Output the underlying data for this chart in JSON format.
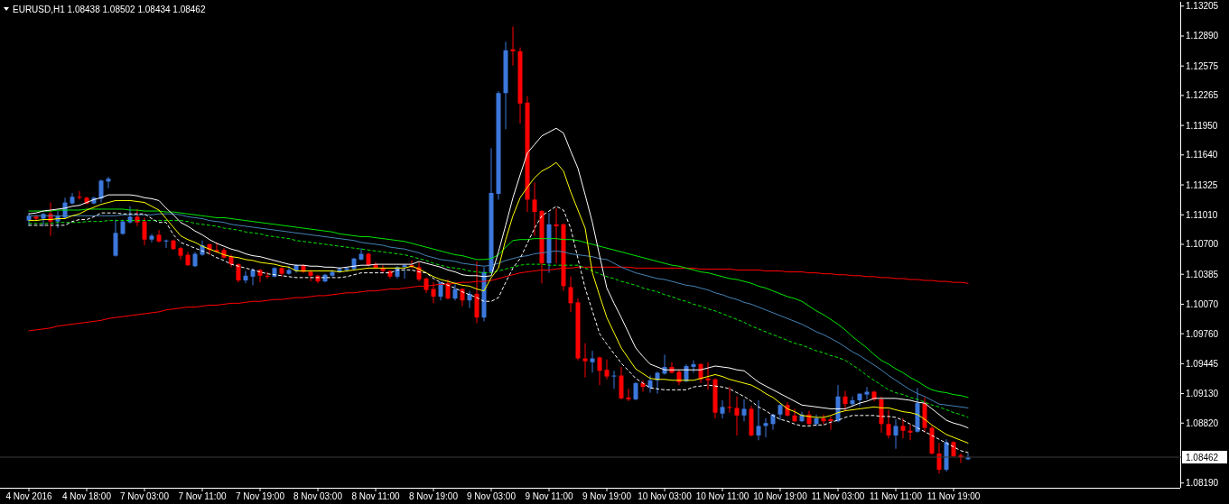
{
  "chart_data": {
    "type": "candlestick",
    "title": "EURUSD,H1 1.08438 1.08502 1.08434 1.08462",
    "categories": [
      "4 Nov 2016",
      null,
      null,
      null,
      null,
      null,
      null,
      null,
      "4 Nov 18:00",
      null,
      null,
      null,
      null,
      null,
      null,
      null,
      "7 Nov 03:00",
      null,
      null,
      null,
      null,
      null,
      null,
      null,
      "7 Nov 11:00",
      null,
      null,
      null,
      null,
      null,
      null,
      null,
      "7 Nov 19:00",
      null,
      null,
      null,
      null,
      null,
      null,
      null,
      "8 Nov 03:00",
      null,
      null,
      null,
      null,
      null,
      null,
      null,
      "8 Nov 11:00",
      null,
      null,
      null,
      null,
      null,
      null,
      null,
      "8 Nov 19:00",
      null,
      null,
      null,
      null,
      null,
      null,
      null,
      "9 Nov 03:00",
      null,
      null,
      null,
      null,
      null,
      null,
      null,
      "9 Nov 11:00",
      null,
      null,
      null,
      null,
      null,
      null,
      null,
      "9 Nov 19:00",
      null,
      null,
      null,
      null,
      null,
      null,
      null,
      "10 Nov 03:00",
      null,
      null,
      null,
      null,
      null,
      null,
      null,
      "10 Nov 11:00",
      null,
      null,
      null,
      null,
      null,
      null,
      null,
      "10 Nov 19:00",
      null,
      null,
      null,
      null,
      null,
      null,
      null,
      "11 Nov 03:00",
      null,
      null,
      null,
      null,
      null,
      null,
      null,
      "11 Nov 11:00",
      null,
      null,
      null,
      null,
      null,
      null,
      null,
      "11 Nov 19:00",
      null,
      null
    ],
    "ohlc": [
      [
        1.1095,
        1.1103,
        1.1089,
        1.11
      ],
      [
        1.1099,
        1.1101,
        1.1095,
        1.1097
      ],
      [
        1.1097,
        1.1103,
        1.1089,
        1.1102
      ],
      [
        1.1102,
        1.1114,
        1.1079,
        1.1094
      ],
      [
        1.1094,
        1.1105,
        1.1087,
        1.11
      ],
      [
        1.1098,
        1.1119,
        1.1097,
        1.1114
      ],
      [
        1.1113,
        1.1124,
        1.1112,
        1.112
      ],
      [
        1.112,
        1.1126,
        1.1117,
        1.1119
      ],
      [
        1.1119,
        1.112,
        1.1112,
        1.1113
      ],
      [
        1.1113,
        1.112,
        1.1112,
        1.1119
      ],
      [
        1.1118,
        1.1138,
        1.1114,
        1.1137
      ],
      [
        1.1136,
        1.1141,
        1.1129,
        1.1139
      ],
      [
        1.1058,
        1.1096,
        1.1057,
        1.1082
      ],
      [
        1.1081,
        1.1096,
        1.108,
        1.1094
      ],
      [
        1.1093,
        1.111,
        1.1092,
        1.1099
      ],
      [
        1.1099,
        1.1107,
        1.1089,
        1.1093
      ],
      [
        1.1094,
        1.1098,
        1.1069,
        1.1075
      ],
      [
        1.1075,
        1.1081,
        1.1072,
        1.1079
      ],
      [
        1.108,
        1.1085,
        1.1072,
        1.1073
      ],
      [
        1.1073,
        1.1075,
        1.1066,
        1.1074
      ],
      [
        1.1074,
        1.1075,
        1.1064,
        1.1065
      ],
      [
        1.1066,
        1.1067,
        1.1054,
        1.1058
      ],
      [
        1.1059,
        1.1062,
        1.1047,
        1.1048
      ],
      [
        1.1047,
        1.1062,
        1.1046,
        1.106
      ],
      [
        1.1059,
        1.1074,
        1.1058,
        1.1069
      ],
      [
        1.107,
        1.1071,
        1.1059,
        1.1064
      ],
      [
        1.1064,
        1.1072,
        1.1061,
        1.1062
      ],
      [
        1.1064,
        1.1066,
        1.1055,
        1.1056
      ],
      [
        1.1057,
        1.1059,
        1.1046,
        1.1049
      ],
      [
        1.1049,
        1.105,
        1.103,
        1.1032
      ],
      [
        1.1032,
        1.1042,
        1.1029,
        1.1037
      ],
      [
        1.1036,
        1.1045,
        1.1027,
        1.1043
      ],
      [
        1.1043,
        1.1044,
        1.103,
        1.1037
      ],
      [
        1.1037,
        1.1041,
        1.1034,
        1.1036
      ],
      [
        1.1036,
        1.1046,
        1.1035,
        1.1045
      ],
      [
        1.1045,
        1.1046,
        1.1036,
        1.1039
      ],
      [
        1.1039,
        1.1047,
        1.1038,
        1.1043
      ],
      [
        1.1042,
        1.1049,
        1.104,
        1.1048
      ],
      [
        1.1048,
        1.1049,
        1.104,
        1.1041
      ],
      [
        1.1041,
        1.1043,
        1.1031,
        1.1037
      ],
      [
        1.1037,
        1.1038,
        1.1029,
        1.1031
      ],
      [
        1.1031,
        1.1039,
        1.103,
        1.1038
      ],
      [
        1.1037,
        1.1043,
        1.1036,
        1.1041
      ],
      [
        1.1041,
        1.1046,
        1.104,
        1.1044
      ],
      [
        1.1043,
        1.1046,
        1.1041,
        1.1045
      ],
      [
        1.1044,
        1.1056,
        1.1043,
        1.1055
      ],
      [
        1.1054,
        1.1066,
        1.1053,
        1.106
      ],
      [
        1.106,
        1.1061,
        1.1047,
        1.1048
      ],
      [
        1.1049,
        1.1051,
        1.1044,
        1.1045
      ],
      [
        1.1045,
        1.1048,
        1.104,
        1.1042
      ],
      [
        1.1042,
        1.1043,
        1.1034,
        1.1036
      ],
      [
        1.1036,
        1.1047,
        1.1034,
        1.1046
      ],
      [
        1.1046,
        1.1049,
        1.1034,
        1.1048
      ],
      [
        1.1048,
        1.1053,
        1.1045,
        1.1046
      ],
      [
        1.1046,
        1.1051,
        1.1031,
        1.1033
      ],
      [
        1.1034,
        1.1035,
        1.1019,
        1.1022
      ],
      [
        1.1023,
        1.103,
        1.1008,
        1.1015
      ],
      [
        1.1015,
        1.1031,
        1.1011,
        1.103
      ],
      [
        1.1029,
        1.1033,
        1.1012,
        1.1013
      ],
      [
        1.1013,
        1.1028,
        1.1011,
        1.1023
      ],
      [
        1.1023,
        1.1024,
        1.1005,
        1.1011
      ],
      [
        1.1011,
        1.1021,
        1.1003,
        1.1018
      ],
      [
        1.1018,
        1.1052,
        1.0987,
        1.0993
      ],
      [
        1.0993,
        1.1046,
        1.0989,
        1.1041
      ],
      [
        1.1041,
        1.1171,
        1.104,
        1.1124
      ],
      [
        1.1123,
        1.1231,
        1.1117,
        1.1229
      ],
      [
        1.1229,
        1.1283,
        1.1191,
        1.1274
      ],
      [
        1.1275,
        1.1299,
        1.1258,
        1.1273
      ],
      [
        1.1273,
        1.1277,
        1.1197,
        1.1218
      ],
      [
        1.1219,
        1.1226,
        1.1104,
        1.1117
      ],
      [
        1.1117,
        1.1135,
        1.1079,
        1.1104
      ],
      [
        1.1105,
        1.1106,
        1.1029,
        1.105
      ],
      [
        1.105,
        1.1103,
        1.104,
        1.1091
      ],
      [
        1.1091,
        1.1108,
        1.105,
        1.1089
      ],
      [
        1.1091,
        1.1092,
        1.1021,
        1.1026
      ],
      [
        1.1025,
        1.1036,
        1.0999,
        1.1008
      ],
      [
        1.1009,
        1.1013,
        1.0948,
        1.095
      ],
      [
        1.095,
        1.0966,
        1.093,
        1.0947
      ],
      [
        1.0946,
        1.0958,
        1.0935,
        1.095
      ],
      [
        1.0951,
        1.0952,
        1.0922,
        1.0937
      ],
      [
        1.0938,
        1.0949,
        1.0928,
        1.0931
      ],
      [
        1.0931,
        1.0937,
        1.0918,
        1.0932
      ],
      [
        1.0932,
        1.0941,
        1.0907,
        1.0908
      ],
      [
        1.0909,
        1.0918,
        1.0905,
        1.0907
      ],
      [
        1.0907,
        1.0925,
        1.0906,
        1.0924
      ],
      [
        1.0924,
        1.0927,
        1.0915,
        1.092
      ],
      [
        1.0919,
        1.0932,
        1.0914,
        1.0927
      ],
      [
        1.0927,
        1.0936,
        1.0913,
        1.0935
      ],
      [
        1.0934,
        1.0954,
        1.0933,
        1.0941
      ],
      [
        1.0941,
        1.0946,
        1.0934,
        1.0935
      ],
      [
        1.0936,
        1.0938,
        1.0922,
        1.0925
      ],
      [
        1.0926,
        1.0944,
        1.0925,
        1.0942
      ],
      [
        1.0941,
        1.0948,
        1.0935,
        1.0944
      ],
      [
        1.0944,
        1.0945,
        1.0924,
        1.0928
      ],
      [
        1.0929,
        1.0946,
        1.0917,
        1.0927
      ],
      [
        1.0928,
        1.0929,
        1.0887,
        1.0893
      ],
      [
        1.0892,
        1.0906,
        1.0887,
        1.0899
      ],
      [
        1.0899,
        1.092,
        1.0893,
        1.0898
      ],
      [
        1.0898,
        1.091,
        1.0869,
        1.089
      ],
      [
        1.089,
        1.0907,
        1.0884,
        1.0897
      ],
      [
        1.0897,
        1.09,
        1.0868,
        1.0869
      ],
      [
        1.0869,
        1.0906,
        1.0864,
        1.0879
      ],
      [
        1.0879,
        1.0887,
        1.0867,
        1.0882
      ],
      [
        1.0881,
        1.0892,
        1.0875,
        1.0891
      ],
      [
        1.0891,
        1.0902,
        1.0885,
        1.0901
      ],
      [
        1.0901,
        1.0904,
        1.0889,
        1.089
      ],
      [
        1.089,
        1.0897,
        1.0883,
        1.0884
      ],
      [
        1.0884,
        1.0894,
        1.0883,
        1.0891
      ],
      [
        1.0891,
        1.0895,
        1.088,
        1.0881
      ],
      [
        1.0881,
        1.0891,
        1.0879,
        1.0887
      ],
      [
        1.0887,
        1.0891,
        1.0881,
        1.0884
      ],
      [
        1.0886,
        1.0889,
        1.0875,
        1.0884
      ],
      [
        1.0884,
        1.0922,
        1.0883,
        1.091
      ],
      [
        1.091,
        1.0916,
        1.0895,
        1.0902
      ],
      [
        1.0902,
        1.091,
        1.09,
        1.0906
      ],
      [
        1.0906,
        1.0913,
        1.09,
        1.0913
      ],
      [
        1.0912,
        1.092,
        1.0907,
        1.0915
      ],
      [
        1.0915,
        1.0916,
        1.0905,
        1.0907
      ],
      [
        1.0907,
        1.091,
        1.0872,
        1.0881
      ],
      [
        1.0881,
        1.0896,
        1.0866,
        1.0869
      ],
      [
        1.0869,
        1.0886,
        1.0855,
        1.0879
      ],
      [
        1.0879,
        1.0887,
        1.0866,
        1.0874
      ],
      [
        1.0874,
        1.088,
        1.0864,
        1.0872
      ],
      [
        1.0873,
        1.0919,
        1.0872,
        1.0903
      ],
      [
        1.0903,
        1.0909,
        1.0872,
        1.0877
      ],
      [
        1.0877,
        1.0879,
        1.0849,
        1.085
      ],
      [
        1.085,
        1.0861,
        1.0829,
        1.0833
      ],
      [
        1.0833,
        1.0865,
        1.0831,
        1.0862
      ],
      [
        1.0862,
        1.0863,
        1.0847,
        1.0847
      ],
      [
        1.0848,
        1.085,
        1.084,
        1.0846
      ],
      [
        1.0844,
        1.085,
        1.0843,
        1.0846
      ]
    ],
    "colors": [
      "#3c78dc",
      "#ff0000",
      "#3c78dc",
      "#ff0000",
      "#3c78dc",
      "#3c78dc",
      "#3c78dc",
      "#ff0000",
      "#ff0000",
      "#3c78dc",
      "#3c78dc",
      "#3c78dc",
      "#3c78dc",
      "#3c78dc",
      "#3c78dc",
      "#ff0000",
      "#ff0000",
      "#3c78dc",
      "#ff0000",
      "#3c78dc",
      "#ff0000",
      "#ff0000",
      "#ff0000",
      "#3c78dc",
      "#3c78dc",
      "#ff0000",
      "#ff0000",
      "#ff0000",
      "#ff0000",
      "#ff0000",
      "#3c78dc",
      "#3c78dc",
      "#ff0000",
      "#ff0000",
      "#3c78dc",
      "#ff0000",
      "#3c78dc",
      "#3c78dc",
      "#ff0000",
      "#ff0000",
      "#ff0000",
      "#3c78dc",
      "#3c78dc",
      "#3c78dc",
      "#3c78dc",
      "#3c78dc",
      "#3c78dc",
      "#ff0000",
      "#ff0000",
      "#ff0000",
      "#ff0000",
      "#3c78dc",
      "#3c78dc",
      "#ff0000",
      "#ff0000",
      "#ff0000",
      "#ff0000",
      "#3c78dc",
      "#ff0000",
      "#3c78dc",
      "#ff0000",
      "#3c78dc",
      "#ff0000",
      "#3c78dc",
      "#3c78dc",
      "#3c78dc",
      "#3c78dc",
      "#ff0000",
      "#ff0000",
      "#ff0000",
      "#ff0000",
      "#ff0000",
      "#3c78dc",
      "#ff0000",
      "#ff0000",
      "#ff0000",
      "#ff0000",
      "#ff0000",
      "#3c78dc",
      "#ff0000",
      "#ff0000",
      "#3c78dc",
      "#ff0000",
      "#ff0000",
      "#3c78dc",
      "#ff0000",
      "#3c78dc",
      "#3c78dc",
      "#3c78dc",
      "#ff0000",
      "#ff0000",
      "#3c78dc",
      "#3c78dc",
      "#ff0000",
      "#ff0000",
      "#ff0000",
      "#3c78dc",
      "#ff0000",
      "#ff0000",
      "#3c78dc",
      "#ff0000",
      "#3c78dc",
      "#3c78dc",
      "#3c78dc",
      "#3c78dc",
      "#ff0000",
      "#ff0000",
      "#3c78dc",
      "#ff0000",
      "#3c78dc",
      "#ff0000",
      "#ff0000",
      "#3c78dc",
      "#ff0000",
      "#3c78dc",
      "#3c78dc",
      "#3c78dc",
      "#ff0000",
      "#ff0000",
      "#ff0000",
      "#3c78dc",
      "#ff0000",
      "#ff0000",
      "#3c78dc",
      "#ff0000",
      "#ff0000",
      "#ff0000",
      "#3c78dc",
      "#ff0000",
      "#ff0000",
      "#3c78dc"
    ],
    "series": [
      {
        "type": "line",
        "color": "#ff0000",
        "values": [
          1.0979,
          1.098,
          1.0981,
          1.0982,
          1.0984,
          1.0985,
          1.0986,
          1.0987,
          1.0988,
          1.0989,
          1.099,
          1.0992,
          1.0993,
          1.0994,
          1.0995,
          1.0996,
          1.0997,
          1.0998,
          1.0999,
          1.1001,
          1.1002,
          1.1003,
          1.1004,
          1.1004,
          1.1005,
          1.1006,
          1.1006,
          1.1007,
          1.1008,
          1.1008,
          1.1009,
          1.101,
          1.101,
          1.1011,
          1.1012,
          1.1012,
          1.1013,
          1.1014,
          1.1014,
          1.1015,
          1.1016,
          1.1016,
          1.1017,
          1.1018,
          1.1019,
          1.1019,
          1.102,
          1.1021,
          1.1021,
          1.1022,
          1.1023,
          1.1023,
          1.1024,
          1.1025,
          1.1026,
          1.1026,
          1.1027,
          1.1028,
          1.1028,
          1.1029,
          1.103,
          1.103,
          1.1031,
          1.1031,
          1.1032,
          1.1034,
          1.1036,
          1.1038,
          1.104,
          1.1041,
          1.1042,
          1.1043,
          1.1043,
          1.1044,
          1.1045,
          1.1045,
          1.1046,
          1.1046,
          1.1046,
          1.1046,
          1.1046,
          1.1046,
          1.1046,
          1.1046,
          1.1045,
          1.1045,
          1.1045,
          1.1045,
          1.1045,
          1.1045,
          1.1045,
          1.1045,
          1.1045,
          1.1044,
          1.1044,
          1.1044,
          1.1044,
          1.1044,
          1.1043,
          1.1043,
          1.1043,
          1.1043,
          1.1042,
          1.1042,
          1.1042,
          1.1041,
          1.1041,
          1.1041,
          1.104,
          1.104,
          1.1039,
          1.1039,
          1.1038,
          1.1038,
          1.1037,
          1.1037,
          1.1036,
          1.1036,
          1.1035,
          1.1035,
          1.1034,
          1.1034,
          1.1033,
          1.1033,
          1.1032,
          1.1032,
          1.1031,
          1.1031,
          1.103,
          1.103,
          1.1029
        ]
      },
      {
        "type": "line",
        "color": "#00e600",
        "values": [
          1.1105,
          1.1105,
          1.1105,
          1.1105,
          1.1106,
          1.1106,
          1.1106,
          1.1106,
          1.1107,
          1.1107,
          1.1107,
          1.1107,
          1.1107,
          1.1107,
          1.1106,
          1.1106,
          1.1105,
          1.1105,
          1.1105,
          1.1104,
          1.1104,
          1.1103,
          1.1102,
          1.1101,
          1.11,
          1.1099,
          1.1098,
          1.1098,
          1.1097,
          1.1096,
          1.1095,
          1.1094,
          1.1093,
          1.1092,
          1.1091,
          1.109,
          1.1089,
          1.1088,
          1.1087,
          1.1086,
          1.1085,
          1.1084,
          1.1083,
          1.1081,
          1.108,
          1.1079,
          1.1078,
          1.1078,
          1.1077,
          1.1076,
          1.1075,
          1.1074,
          1.1073,
          1.1071,
          1.1069,
          1.1067,
          1.1065,
          1.1063,
          1.1061,
          1.1059,
          1.1058,
          1.1056,
          1.1054,
          1.1054,
          1.1055,
          1.1059,
          1.1067,
          1.1074,
          1.1075,
          1.1075,
          1.1076,
          1.1076,
          1.1076,
          1.1076,
          1.1075,
          1.1075,
          1.1074,
          1.1072,
          1.107,
          1.1068,
          1.1066,
          1.1064,
          1.1062,
          1.106,
          1.1058,
          1.1056,
          1.1054,
          1.1052,
          1.105,
          1.1048,
          1.1047,
          1.1045,
          1.1043,
          1.1041,
          1.104,
          1.1038,
          1.1036,
          1.1034,
          1.1033,
          1.1031,
          1.1029,
          1.1026,
          1.1024,
          1.1021,
          1.1018,
          1.1015,
          1.1013,
          1.101,
          1.1005,
          1.1,
          1.0996,
          1.0991,
          1.0986,
          1.098,
          1.0973,
          1.0967,
          1.0961,
          1.0954,
          1.0948,
          1.0944,
          1.0939,
          1.0935,
          1.093,
          1.0926,
          1.0921,
          1.0917,
          1.0915,
          1.0914,
          1.0912,
          1.0911,
          1.0909
        ]
      },
      {
        "type": "line",
        "color": "#4682b4",
        "values": [
          1.11,
          1.11,
          1.11,
          1.11,
          1.11,
          1.11,
          1.11,
          1.11,
          1.11,
          1.11,
          1.11,
          1.11,
          1.11,
          1.1101,
          1.1101,
          1.1101,
          1.1101,
          1.1101,
          1.1102,
          1.1102,
          1.1102,
          1.1101,
          1.1099,
          1.1098,
          1.1097,
          1.1095,
          1.1094,
          1.1093,
          1.1091,
          1.109,
          1.1089,
          1.1088,
          1.1087,
          1.1086,
          1.1085,
          1.1084,
          1.1083,
          1.1082,
          1.1081,
          1.108,
          1.1079,
          1.1078,
          1.1077,
          1.1076,
          1.1075,
          1.1074,
          1.1072,
          1.1071,
          1.107,
          1.1069,
          1.1067,
          1.1066,
          1.1065,
          1.1063,
          1.1061,
          1.1058,
          1.1056,
          1.1054,
          1.1053,
          1.1052,
          1.105,
          1.1049,
          1.1048,
          1.1047,
          1.1048,
          1.105,
          1.1053,
          1.1055,
          1.1057,
          1.1058,
          1.106,
          1.1061,
          1.1062,
          1.1063,
          1.1062,
          1.106,
          1.1059,
          1.1058,
          1.1057,
          1.1055,
          1.1054,
          1.105,
          1.1046,
          1.1043,
          1.104,
          1.1038,
          1.1036,
          1.1034,
          1.1033,
          1.1031,
          1.1029,
          1.1027,
          1.1026,
          1.1024,
          1.1022,
          1.1019,
          1.1017,
          1.1014,
          1.1012,
          1.1009,
          1.1007,
          1.1004,
          1.1001,
          1.0998,
          1.0995,
          1.0992,
          1.0989,
          1.0986,
          1.0982,
          1.0978,
          1.0975,
          1.0971,
          1.0967,
          1.0962,
          1.0957,
          1.0953,
          1.0948,
          1.0943,
          1.0938,
          1.0932,
          1.0927,
          1.0922,
          1.0917,
          1.0913,
          1.091,
          1.0906,
          1.0902,
          1.0901,
          1.09,
          1.0899,
          1.0898
        ]
      },
      {
        "type": "line",
        "color": "#00e600",
        "line_style": "dashed",
        "values": [
          1.1092,
          1.1092,
          1.1092,
          1.1092,
          1.1093,
          1.1093,
          1.1093,
          1.1093,
          1.1094,
          1.1094,
          1.1094,
          1.1095,
          1.1095,
          1.1095,
          1.1095,
          1.1095,
          1.1095,
          1.1095,
          1.1095,
          1.1095,
          1.1095,
          1.1095,
          1.1094,
          1.1092,
          1.1091,
          1.109,
          1.1089,
          1.1087,
          1.1086,
          1.1085,
          1.1083,
          1.1082,
          1.1081,
          1.1079,
          1.1078,
          1.1077,
          1.1076,
          1.1074,
          1.1073,
          1.1072,
          1.1071,
          1.107,
          1.1069,
          1.1068,
          1.1067,
          1.1066,
          1.1065,
          1.1064,
          1.1063,
          1.1062,
          1.1061,
          1.106,
          1.1059,
          1.1057,
          1.1055,
          1.1053,
          1.105,
          1.1048,
          1.1046,
          1.1045,
          1.1044,
          1.1042,
          1.1041,
          1.104,
          1.104,
          1.1042,
          1.1044,
          1.1046,
          1.1048,
          1.1049,
          1.1049,
          1.1049,
          1.1048,
          1.1048,
          1.1048,
          1.1048,
          1.1048,
          1.1045,
          1.1042,
          1.1039,
          1.1036,
          1.1034,
          1.1031,
          1.1029,
          1.1027,
          1.1024,
          1.1022,
          1.102,
          1.1017,
          1.1015,
          1.1012,
          1.101,
          1.1007,
          1.1005,
          1.1002,
          1.1,
          1.0997,
          1.0994,
          1.0991,
          1.0988,
          1.0984,
          1.0981,
          1.0978,
          1.0975,
          1.0972,
          1.0969,
          1.0966,
          1.0964,
          1.0961,
          1.0958,
          1.0956,
          1.0953,
          1.0951,
          1.0948,
          1.0943,
          1.0938,
          1.0932,
          1.0927,
          1.0922,
          1.0917,
          1.0914,
          1.0912,
          1.0909,
          1.0907,
          1.0904,
          1.0901,
          1.0899,
          1.0896,
          1.0893,
          1.0891,
          1.0888
        ]
      },
      {
        "type": "line",
        "color": "#ffffff",
        "values": [
          1.1102,
          1.1103,
          1.1105,
          1.1106,
          1.1107,
          1.1108,
          1.111,
          1.1111,
          1.1114,
          1.1117,
          1.1119,
          1.1122,
          1.1122,
          1.1122,
          1.1122,
          1.1121,
          1.1119,
          1.1118,
          1.1116,
          1.1108,
          1.1101,
          1.1093,
          1.1089,
          1.1084,
          1.108,
          1.1075,
          1.1071,
          1.1068,
          1.1065,
          1.1063,
          1.106,
          1.1058,
          1.1057,
          1.1055,
          1.1053,
          1.1051,
          1.1049,
          1.1048,
          1.1048,
          1.1047,
          1.1047,
          1.1046,
          1.1046,
          1.1045,
          1.1046,
          1.1047,
          1.1048,
          1.1048,
          1.1049,
          1.1049,
          1.1049,
          1.1049,
          1.1049,
          1.1049,
          1.1052,
          1.105,
          1.1048,
          1.1046,
          1.1043,
          1.1041,
          1.1038,
          1.1037,
          1.1037,
          1.1036,
          1.1037,
          1.1062,
          1.109,
          1.1119,
          1.1143,
          1.1166,
          1.1175,
          1.1184,
          1.1188,
          1.1192,
          1.1187,
          1.1168,
          1.115,
          1.1122,
          1.1093,
          1.1058,
          1.1024,
          1.1008,
          1.0993,
          1.0977,
          1.0961,
          1.0952,
          1.0944,
          1.0941,
          1.0938,
          1.0938,
          1.0938,
          1.0938,
          1.0938,
          1.0938,
          1.094,
          1.0942,
          1.0941,
          1.094,
          1.0938,
          1.0937,
          1.0931,
          1.0925,
          1.0921,
          1.0917,
          1.0913,
          1.0909,
          1.0905,
          1.0901,
          1.09,
          1.0899,
          1.0898,
          1.0897,
          1.0897,
          1.0897,
          1.09,
          1.0903,
          1.0905,
          1.0908,
          1.0908,
          1.0908,
          1.0908,
          1.0907,
          1.0906,
          1.0904,
          1.0903,
          1.0897,
          1.0891,
          1.0885,
          1.0882,
          1.088,
          1.0877
        ]
      },
      {
        "type": "line",
        "color": "#ffff00",
        "values": [
          1.1095,
          1.1095,
          1.1096,
          1.1096,
          1.1097,
          1.1097,
          1.11,
          1.1102,
          1.1106,
          1.1109,
          1.1112,
          1.1114,
          1.1116,
          1.1116,
          1.1116,
          1.1115,
          1.1114,
          1.111,
          1.1106,
          1.1097,
          1.1088,
          1.1079,
          1.1075,
          1.1072,
          1.1068,
          1.1065,
          1.1062,
          1.1059,
          1.1057,
          1.1056,
          1.1054,
          1.1053,
          1.1051,
          1.105,
          1.1049,
          1.1047,
          1.1046,
          1.1042,
          1.1042,
          1.1042,
          1.1042,
          1.1042,
          1.1042,
          1.1041,
          1.1042,
          1.1043,
          1.1044,
          1.1045,
          1.1045,
          1.1045,
          1.1045,
          1.1045,
          1.1045,
          1.1047,
          1.1044,
          1.104,
          1.1036,
          1.1033,
          1.1031,
          1.1029,
          1.1027,
          1.1026,
          1.1023,
          1.1021,
          1.1035,
          1.1045,
          1.1075,
          1.11,
          1.1119,
          1.113,
          1.114,
          1.1147,
          1.1151,
          1.1156,
          1.1147,
          1.1125,
          1.1106,
          1.1087,
          1.104,
          1.1016,
          1.0993,
          1.0977,
          1.0961,
          1.095,
          1.0939,
          1.0934,
          1.0929,
          1.0928,
          1.0928,
          1.0927,
          1.0927,
          1.0927,
          1.0927,
          1.0929,
          1.0931,
          1.0933,
          1.0931,
          1.0928,
          1.0926,
          1.0924,
          1.0922,
          1.0918,
          1.0913,
          1.0909,
          1.0903,
          1.0897,
          1.0894,
          1.089,
          1.0889,
          1.0888,
          1.0888,
          1.089,
          1.0893,
          1.0895,
          1.0896,
          1.0897,
          1.0898,
          1.0899,
          1.0898,
          1.0898,
          1.0896,
          1.0894,
          1.0893,
          1.0891,
          1.0886,
          1.088,
          1.0875,
          1.087,
          1.0867,
          1.0864,
          1.0861
        ]
      },
      {
        "type": "line",
        "color": "#ffffff",
        "line_style": "dashed",
        "values": [
          1.109,
          1.109,
          1.109,
          1.109,
          1.109,
          1.109,
          1.1094,
          1.1096,
          1.1096,
          1.1099,
          1.1103,
          1.1103,
          1.1103,
          1.1102,
          1.1102,
          1.1102,
          1.1102,
          1.1097,
          1.1093,
          1.1093,
          1.108,
          1.1072,
          1.1069,
          1.1066,
          1.1063,
          1.106,
          1.1056,
          1.1053,
          1.1049,
          1.1047,
          1.1045,
          1.1043,
          1.1041,
          1.1039,
          1.1038,
          1.1037,
          1.1036,
          1.1035,
          1.1035,
          1.1035,
          1.1035,
          1.1035,
          1.1035,
          1.1035,
          1.1036,
          1.1038,
          1.104,
          1.104,
          1.104,
          1.104,
          1.104,
          1.1043,
          1.1043,
          1.1043,
          1.1041,
          1.104,
          1.1034,
          1.103,
          1.1027,
          1.1024,
          1.102,
          1.1017,
          1.1014,
          1.101,
          1.101,
          1.1014,
          1.103,
          1.1045,
          1.1055,
          1.1071,
          1.1087,
          1.11,
          1.1105,
          1.111,
          1.1106,
          1.1087,
          1.1055,
          1.1024,
          1.1,
          1.0976,
          1.0965,
          1.0955,
          1.0945,
          1.0937,
          1.0929,
          1.0924,
          1.0919,
          1.0918,
          1.0917,
          1.0917,
          1.0917,
          1.0917,
          1.092,
          1.0921,
          1.0922,
          1.0921,
          1.092,
          1.0918,
          1.0914,
          1.091,
          1.0905,
          1.0899,
          1.0895,
          1.089,
          1.0886,
          1.0884,
          1.0881,
          1.0879,
          1.0879,
          1.088,
          1.088,
          1.0883,
          1.0885,
          1.0888,
          1.089,
          1.089,
          1.089,
          1.089,
          1.0889,
          1.0889,
          1.0888,
          1.0885,
          1.0881,
          1.0877,
          1.0873,
          1.0869,
          1.0865,
          1.0861,
          1.0857,
          1.0853,
          1.0851
        ]
      }
    ],
    "ylim": [
      1.0814,
      1.1325
    ],
    "yticks": [
      {
        "value": 1.13205,
        "label": "1.13205"
      },
      {
        "value": 1.1289,
        "label": "1.12890"
      },
      {
        "value": 1.12575,
        "label": "1.12575"
      },
      {
        "value": 1.12265,
        "label": "1.12265"
      },
      {
        "value": 1.1195,
        "label": "1.11950"
      },
      {
        "value": 1.1164,
        "label": "1.11640"
      },
      {
        "value": 1.11325,
        "label": "1.11325"
      },
      {
        "value": 1.1101,
        "label": "1.11010"
      },
      {
        "value": 1.107,
        "label": "1.10700"
      },
      {
        "value": 1.10385,
        "label": "1.10385"
      },
      {
        "value": 1.1007,
        "label": "1.10070"
      },
      {
        "value": 1.0976,
        "label": "1.09760"
      },
      {
        "value": 1.09445,
        "label": "1.09445"
      },
      {
        "value": 1.0913,
        "label": "1.09130"
      },
      {
        "value": 1.0882,
        "label": "1.08820"
      },
      {
        "value": 1.0819,
        "label": "1.08190"
      }
    ],
    "ref_lines": [
      {
        "axis": "y",
        "value": 1.08462,
        "label": "1.08462"
      }
    ]
  }
}
